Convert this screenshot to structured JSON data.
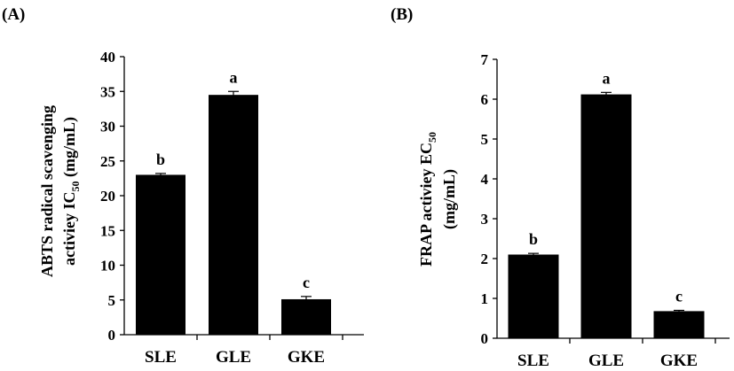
{
  "chart_data": [
    {
      "type": "bar",
      "panel_label": "(A)",
      "categories": [
        "SLE",
        "GLE",
        "GKE"
      ],
      "values": [
        23.0,
        34.5,
        5.1
      ],
      "errors": [
        0.2,
        0.5,
        0.4
      ],
      "significance": [
        "b",
        "a",
        "c"
      ],
      "ylabel_line1": "ABTS radical scavenging",
      "ylabel_line2_main": "activiey  IC",
      "ylabel_line2_sub": "50",
      "ylabel_line2_unit": " (mg/mL)",
      "ylim": [
        0,
        40
      ],
      "yticks": [
        "0",
        "5",
        "10",
        "15",
        "20",
        "25",
        "30",
        "35",
        "40"
      ],
      "color": "#000000"
    },
    {
      "type": "bar",
      "panel_label": "(B)",
      "categories": [
        "SLE",
        "GLE",
        "GKE"
      ],
      "values": [
        2.1,
        6.12,
        0.68
      ],
      "errors": [
        0.03,
        0.05,
        0.02
      ],
      "significance": [
        "b",
        "a",
        "c"
      ],
      "ylabel_line1_main": "FRAP activiey  EC",
      "ylabel_line1_sub": "50",
      "ylabel_line2": "(mg/mL)",
      "ylim": [
        0,
        7
      ],
      "yticks": [
        "0",
        "1",
        "2",
        "3",
        "4",
        "5",
        "6",
        "7"
      ],
      "color": "#000000"
    }
  ]
}
